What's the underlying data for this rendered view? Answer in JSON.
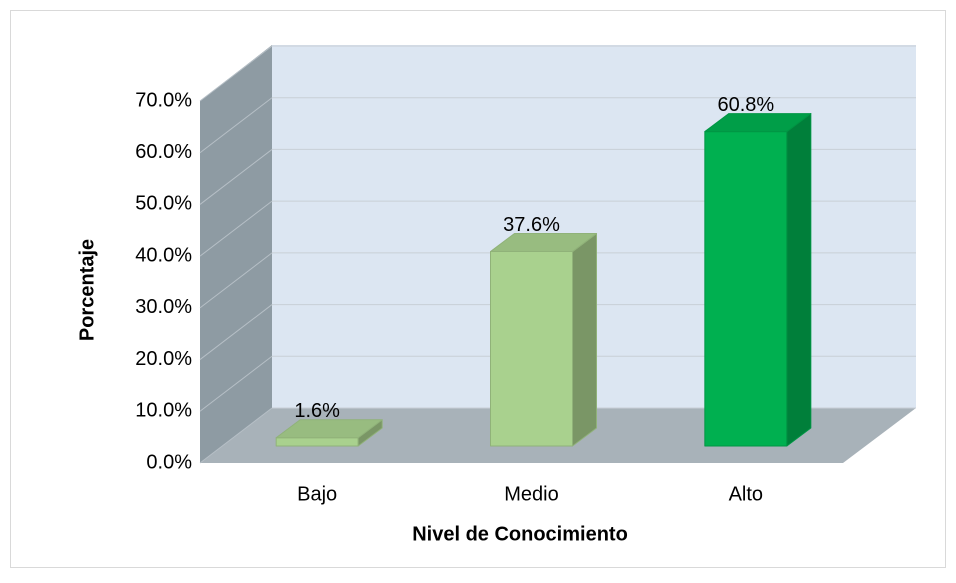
{
  "chart_data": {
    "type": "bar3d",
    "categories": [
      "Bajo",
      "Medio",
      "Alto"
    ],
    "values": [
      1.6,
      37.6,
      60.8
    ],
    "value_labels": [
      "1.6%",
      "37.6%",
      "60.8%"
    ],
    "colors": [
      "#a9d18e",
      "#a9d18e",
      "#00b050"
    ],
    "ylim": [
      0,
      70
    ],
    "yticks": [
      {
        "value": 0,
        "label": "0.0%"
      },
      {
        "value": 10,
        "label": "10.0%"
      },
      {
        "value": 20,
        "label": "20.0%"
      },
      {
        "value": 30,
        "label": "30.0%"
      },
      {
        "value": 40,
        "label": "40.0%"
      },
      {
        "value": 50,
        "label": "50.0%"
      },
      {
        "value": 60,
        "label": "60.0%"
      },
      {
        "value": 70,
        "label": "70.0%"
      }
    ],
    "ylabel": "Porcentaje",
    "xlabel": "Nivel de Conocimiento",
    "grid": true
  }
}
